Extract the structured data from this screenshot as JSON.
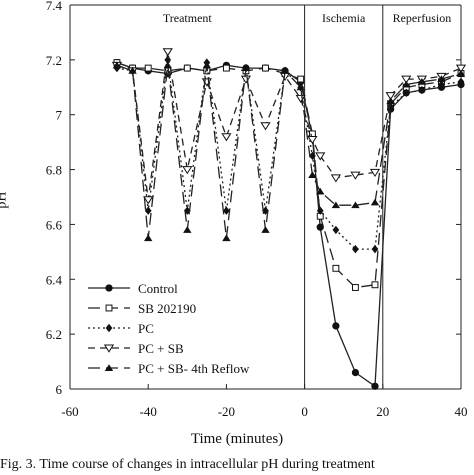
{
  "chart_data": {
    "type": "line",
    "xlabel": "Time (minutes)",
    "ylabel": "pH",
    "xlim": [
      -60,
      40
    ],
    "ylim": [
      6.0,
      7.4
    ],
    "xticks": [
      "-60",
      "-40",
      "-20",
      "0",
      "20",
      "40"
    ],
    "xtick_values": [
      -60,
      -40,
      -20,
      0,
      20,
      40
    ],
    "yticks": [
      "6",
      "6.2",
      "6.4",
      "6.6",
      "6.8",
      "7",
      "7.2",
      "7.4"
    ],
    "ytick_values": [
      6.0,
      6.2,
      6.4,
      6.6,
      6.8,
      7.0,
      7.2,
      7.4
    ],
    "grid": false,
    "legend_position": "bottom-left",
    "region_labels": [
      {
        "text": "Treatment",
        "x_from": -60,
        "x_to": 0
      },
      {
        "text": "Ischemia",
        "x_from": 0,
        "x_to": 20
      },
      {
        "text": "Reperfusion",
        "x_from": 20,
        "x_to": 40
      }
    ],
    "series": [
      {
        "name": "Control",
        "marker": "filled-circle",
        "dash": "solid",
        "x": [
          -48,
          -44,
          -40,
          -35,
          -30,
          -25,
          -20,
          -15,
          -10,
          -5,
          -1,
          2,
          4,
          8,
          13,
          18,
          22,
          26,
          30,
          35,
          40
        ],
        "y": [
          7.19,
          7.17,
          7.16,
          7.15,
          7.17,
          7.16,
          7.18,
          7.17,
          7.17,
          7.16,
          7.12,
          6.92,
          6.59,
          6.23,
          6.06,
          6.01,
          7.02,
          7.08,
          7.09,
          7.1,
          7.11
        ]
      },
      {
        "name": "SB 202190",
        "marker": "open-square",
        "dash": "longdash",
        "x": [
          -48,
          -44,
          -40,
          -35,
          -30,
          -25,
          -20,
          -15,
          -10,
          -5,
          -1,
          2,
          4,
          8,
          13,
          18,
          22,
          26,
          30,
          35,
          40
        ],
        "y": [
          7.19,
          7.17,
          7.17,
          7.16,
          7.17,
          7.16,
          7.17,
          7.16,
          7.17,
          7.15,
          7.13,
          6.93,
          6.63,
          6.44,
          6.37,
          6.38,
          7.04,
          7.1,
          7.11,
          7.12,
          7.15
        ]
      },
      {
        "name": "PC",
        "marker": "filled-diamond",
        "dash": "dotted",
        "x": [
          -48,
          -44,
          -40,
          -35,
          -30,
          -25,
          -20,
          -15,
          -10,
          -5,
          -1,
          2,
          4,
          8,
          13,
          18,
          22,
          26,
          30,
          35,
          40
        ],
        "y": [
          7.17,
          7.16,
          6.65,
          7.2,
          6.65,
          7.19,
          6.65,
          7.17,
          6.65,
          7.16,
          7.1,
          6.85,
          6.65,
          6.58,
          6.51,
          6.51,
          7.03,
          7.08,
          7.09,
          7.11,
          7.12
        ]
      },
      {
        "name": "PC + SB",
        "marker": "open-down-triangle",
        "dash": "shortdash",
        "x": [
          -48,
          -44,
          -40,
          -35,
          -30,
          -25,
          -20,
          -15,
          -10,
          -5,
          -1,
          2,
          4,
          8,
          13,
          18,
          22,
          26,
          30,
          35,
          40
        ],
        "y": [
          7.18,
          7.16,
          6.69,
          7.23,
          6.8,
          7.12,
          6.92,
          7.13,
          6.96,
          7.14,
          7.06,
          6.91,
          6.85,
          6.77,
          6.78,
          6.79,
          7.07,
          7.13,
          7.13,
          7.14,
          7.17
        ]
      },
      {
        "name": "PC + SB- 4th Reflow",
        "marker": "filled-up-triangle",
        "dash": "longdash",
        "x": [
          -48,
          -44,
          -40,
          -35,
          -30,
          -25,
          -20,
          -15,
          -10,
          -5,
          -1,
          2,
          4,
          8,
          13,
          18,
          22,
          26,
          30,
          35,
          40
        ],
        "y": [
          7.18,
          7.16,
          6.55,
          7.18,
          6.58,
          7.18,
          6.55,
          7.17,
          6.58,
          7.16,
          7.1,
          6.78,
          6.72,
          6.67,
          6.67,
          6.68,
          7.05,
          7.11,
          7.12,
          7.13,
          7.15
        ]
      }
    ]
  },
  "caption": "Fig. 3. Time course of changes in intracellular pH during treatment"
}
